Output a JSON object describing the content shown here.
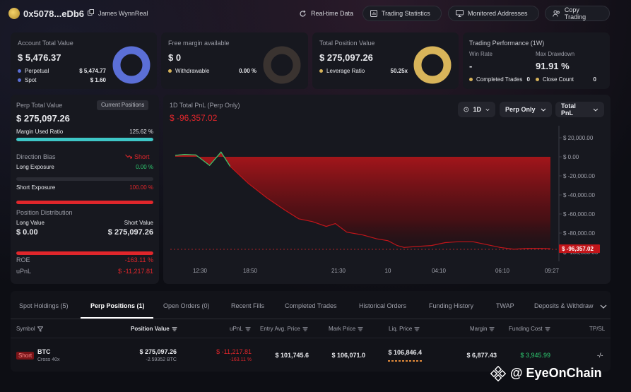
{
  "header": {
    "address": "0x5078...eDb6",
    "owner": "James WynnReal",
    "buttons": {
      "realtime": "Real-time Data",
      "stats": "Trading Statistics",
      "monitored": "Monitored Addresses",
      "copy": "Copy Trading"
    }
  },
  "account": {
    "title": "Account Total Value",
    "value": "$ 5,476.37",
    "perpetual_label": "Perpetual",
    "perpetual_value": "$ 5,474.77",
    "spot_label": "Spot",
    "spot_value": "$ 1.60"
  },
  "margin": {
    "title": "Free margin available",
    "value": "$ 0",
    "withdrawable_label": "Withdrawable",
    "withdrawable_value": "0.00 %"
  },
  "position_value": {
    "title": "Total Position Value",
    "value": "$ 275,097.26",
    "leverage_label": "Leverage Ratio",
    "leverage_value": "50.25x"
  },
  "performance": {
    "title": "Trading Performance (1W)",
    "win_rate_label": "Win Rate",
    "win_rate_value": "-",
    "max_dd_label": "Max Drawdown",
    "max_dd_value": "91.91 %",
    "completed_label": "Completed Trades",
    "completed_value": "0",
    "close_label": "Close Count",
    "close_value": "0"
  },
  "perp": {
    "title": "Perp Total Value",
    "badge": "Current Positions",
    "value": "$ 275,097.26",
    "margin_used_label": "Margin Used Ratio",
    "margin_used_value": "125.62 %",
    "margin_used_fill": 1.0,
    "direction_label": "Direction Bias",
    "direction_value": "Short",
    "long_exposure_label": "Long Exposure",
    "long_exposure_value": "0.00 %",
    "long_exposure_fill": 0.0,
    "short_exposure_label": "Short Exposure",
    "short_exposure_value": "100.00 %",
    "short_exposure_fill": 1.0,
    "distribution_label": "Position Distribution",
    "long_value_label": "Long Value",
    "long_value": "$ 0.00",
    "short_value_label": "Short Value",
    "short_value": "$ 275,097.26",
    "distribution_short_fill": 1.0,
    "roe_label": "ROE",
    "roe_value": "-163.11 %",
    "upnl_label": "uPnL",
    "upnl_value": "$ -11,217.81"
  },
  "pnl": {
    "title": "1D Total PnL (Perp Only)",
    "value": "$ -96,357.02",
    "range": "1D",
    "filter": "Perp Only",
    "metric": "Total PnL"
  },
  "chart_data": {
    "type": "area",
    "x_labels": [
      "12:30",
      "18:50",
      "21:30",
      "10",
      "04:10",
      "06:10",
      "09:27"
    ],
    "y_ticks": [
      "$ 20,000.00",
      "$ 0.00",
      "$ -20,000.00",
      "$ -40,000.00",
      "$ -60,000.00",
      "$ -80,000.00",
      "$ -100,000.00"
    ],
    "ylim": [
      -100000,
      20000
    ],
    "current_label": "$ -96,357.02",
    "current_value": -96357.02,
    "series": [
      {
        "values": [
          [
            0.0,
            1500
          ],
          [
            0.04,
            2500
          ],
          [
            0.09,
            2000
          ],
          [
            0.15,
            -9000
          ],
          [
            0.2,
            5000
          ],
          [
            0.24,
            -10000
          ],
          [
            0.32,
            -28000
          ],
          [
            0.4,
            -43000
          ],
          [
            0.48,
            -56000
          ],
          [
            0.54,
            -65000
          ],
          [
            0.6,
            -68000
          ],
          [
            0.66,
            -73000
          ],
          [
            0.7,
            -70000
          ],
          [
            0.75,
            -79000
          ],
          [
            0.82,
            -82000
          ],
          [
            0.88,
            -86000
          ],
          [
            0.93,
            -88000
          ],
          [
            0.97,
            -93000
          ],
          [
            1.0,
            -95000
          ],
          [
            1.06,
            -94000
          ],
          [
            1.12,
            -93000
          ],
          [
            1.18,
            -90000
          ],
          [
            1.24,
            -89000
          ],
          [
            1.3,
            -89000
          ],
          [
            1.36,
            -92000
          ],
          [
            1.42,
            -95000
          ],
          [
            1.48,
            -97000
          ],
          [
            1.54,
            -96000
          ],
          [
            1.6,
            -96000
          ],
          [
            1.64,
            -96357
          ]
        ]
      }
    ]
  },
  "tabs": [
    "Spot Holdings (5)",
    "Perp Positions (1)",
    "Open Orders (0)",
    "Recent Fills",
    "Completed Trades",
    "Historical Orders",
    "Funding History",
    "TWAP",
    "Deposits & Withdraw"
  ],
  "columns": [
    "Symbol",
    "Position Value",
    "uPnL",
    "Entry Avg. Price",
    "Mark Price",
    "Liq. Price",
    "Margin",
    "Funding Cost",
    "TP/SL"
  ],
  "row": {
    "side": "Short",
    "symbol": "BTC",
    "mode": "Cross 40x",
    "position_value": "$ 275,097.26",
    "position_size": "-2.59352 BTC",
    "upnl": "$ -11,217.81",
    "upnl_pct": "-163.11 %",
    "entry": "$ 101,745.6",
    "mark": "$ 106,071.0",
    "liq": "$ 106,846.4",
    "margin": "$ 6,877.43",
    "funding": "$ 3,945.99",
    "tpsl": "-/-"
  },
  "watermark": "@ EyeOnChain",
  "colors": {
    "accent_blue": "#5b6fd6",
    "gold": "#d8b45a",
    "teal": "#3ec6c6",
    "red": "#e0262b",
    "green": "#2ecc71"
  }
}
